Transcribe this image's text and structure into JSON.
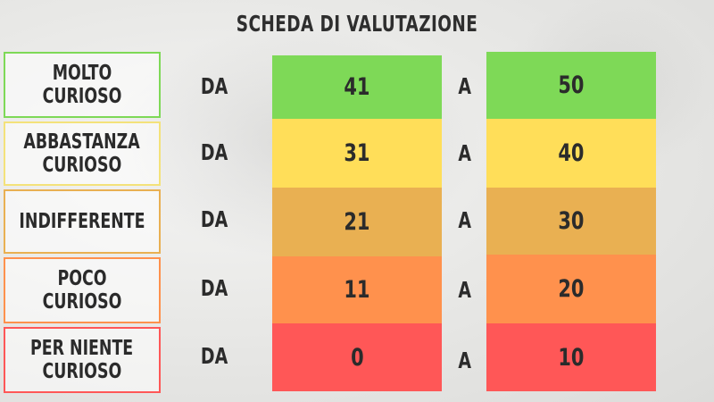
{
  "title": "SCHEDA DI VALUTAZIONE",
  "connector_from": "DA",
  "connector_to": "A",
  "colors": {
    "green": "#7ed957",
    "yellow": "#ffde59",
    "amber": "#e9b052",
    "orange": "#ff914d",
    "red": "#ff5757"
  },
  "rows": [
    {
      "label_line1": "MOLTO CURIOSO",
      "label_line2": "",
      "from": "41",
      "to": "50",
      "color": "#7ed957",
      "border": "#7ed957"
    },
    {
      "label_line1": "ABBASTANZA",
      "label_line2": "CURIOSO",
      "from": "31",
      "to": "40",
      "color": "#ffde59",
      "border": "#f4e27a"
    },
    {
      "label_line1": "INDIFFERENTE",
      "label_line2": "",
      "from": "21",
      "to": "30",
      "color": "#e9b052",
      "border": "#e9b052"
    },
    {
      "label_line1": "POCO CURIOSO",
      "label_line2": "",
      "from": "11",
      "to": "20",
      "color": "#ff914d",
      "border": "#ff914d"
    },
    {
      "label_line1": "PER NIENTE",
      "label_line2": "CURIOSO",
      "from": "0",
      "to": "10",
      "color": "#ff5757",
      "border": "#ff5757"
    }
  ]
}
